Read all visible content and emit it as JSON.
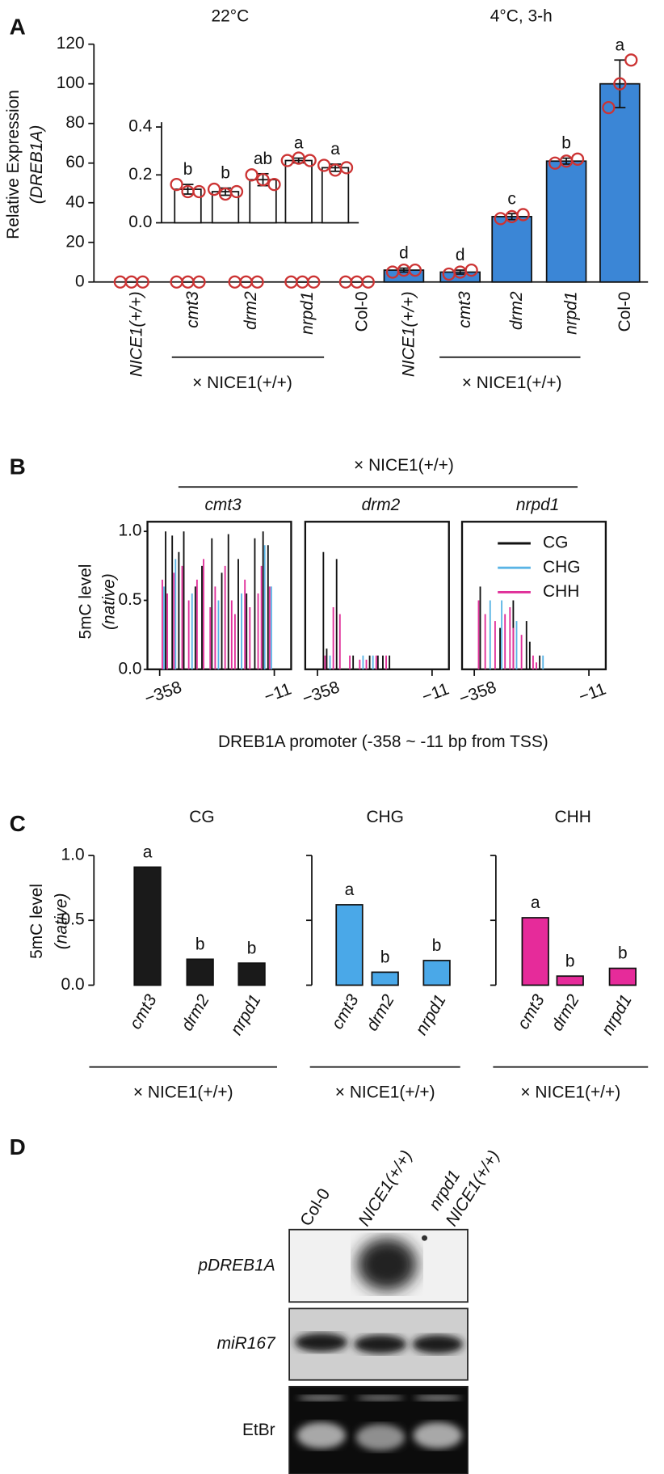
{
  "chart_data": [
    {
      "type": "bar",
      "panel": "A",
      "titles": [
        "22°C",
        "4°C, 3-h"
      ],
      "ylabel": [
        "Relative Expression",
        "(DREB1A)"
      ],
      "categories": [
        "NICE1(+/+)",
        "cmt3",
        "drm2",
        "nrpd1",
        "Col-0",
        "NICE1(+/+)",
        "cmt3",
        "drm2",
        "nrpd1",
        "Col-0"
      ],
      "values": [
        0,
        0,
        0,
        0,
        0,
        6,
        5,
        33,
        61,
        100
      ],
      "errors": [
        0,
        0,
        0,
        0,
        0,
        1,
        1,
        1.5,
        1.5,
        12
      ],
      "replicates": [
        [
          0,
          0,
          0
        ],
        [
          0,
          0,
          0
        ],
        [
          0,
          0,
          0
        ],
        [
          0,
          0,
          0
        ],
        [
          0,
          0,
          0
        ],
        [
          5,
          6,
          6
        ],
        [
          4,
          5,
          6
        ],
        [
          32,
          33,
          34
        ],
        [
          60,
          61,
          62
        ],
        [
          88,
          100,
          112
        ]
      ],
      "letters": [
        null,
        null,
        null,
        null,
        null,
        "d",
        "d",
        "c",
        "b",
        "a"
      ],
      "colors": [
        "#ffffff",
        "#ffffff",
        "#ffffff",
        "#ffffff",
        "#ffffff",
        "#3b86d6",
        "#3b86d6",
        "#3b86d6",
        "#3b86d6",
        "#3b86d6"
      ],
      "replicate_color": "#cc3333",
      "ylim": [
        0,
        120
      ],
      "yticks": [
        0,
        20,
        40,
        60,
        80,
        100,
        120
      ],
      "group_labels": [
        "× NICE1(+/+)",
        "× NICE1(+/+)"
      ]
    },
    {
      "type": "bar",
      "values": [
        0.14,
        0.13,
        0.18,
        0.26,
        0.23
      ],
      "errors": [
        0.02,
        0.015,
        0.025,
        0.01,
        0.015
      ],
      "replicates": [
        [
          0.16,
          0.13,
          0.13
        ],
        [
          0.14,
          0.12,
          0.13
        ],
        [
          0.2,
          0.18,
          0.16
        ],
        [
          0.26,
          0.27,
          0.26
        ],
        [
          0.24,
          0.22,
          0.23
        ]
      ],
      "letters": [
        "b",
        "b",
        "ab",
        "a",
        "a"
      ],
      "color": "#ffffff",
      "replicate_color": "#cc3333",
      "ylim": [
        0,
        0.42
      ],
      "yticks": [
        {
          "value": 0,
          "label": "0.0"
        },
        {
          "value": 0.2,
          "label": "0.2"
        },
        {
          "value": 0.4,
          "label": "0.4"
        }
      ]
    },
    {
      "type": "stick",
      "panel": "B",
      "suptitle": "× NICE1(+/+)",
      "title": "cmt3",
      "ylabel": [
        "5mC level",
        "(native)"
      ],
      "series": [
        {
          "name": "CG",
          "color": "#111111",
          "x": [
            -340,
            -320,
            -300,
            -285,
            -250,
            -230,
            -200,
            -170,
            -150,
            -120,
            -95,
            -70,
            -45,
            -30
          ],
          "values": [
            1.0,
            0.97,
            0.85,
            1.0,
            0.6,
            0.75,
            0.95,
            0.7,
            0.98,
            0.8,
            0.55,
            0.95,
            1.0,
            0.9
          ]
        },
        {
          "name": "CHG",
          "color": "#5ab4e5",
          "x": [
            -345,
            -310,
            -260,
            -180,
            -110,
            -40,
            -20
          ],
          "values": [
            0.6,
            0.8,
            0.55,
            0.5,
            0.55,
            0.9,
            0.6
          ]
        },
        {
          "name": "CHH",
          "color": "#e0309a",
          "x": [
            -350,
            -335,
            -315,
            -290,
            -270,
            -245,
            -225,
            -205,
            -190,
            -160,
            -140,
            -130,
            -100,
            -85,
            -60,
            -50,
            -25
          ],
          "values": [
            0.65,
            0.55,
            0.7,
            0.75,
            0.5,
            0.65,
            0.8,
            0.45,
            0.6,
            0.75,
            0.5,
            0.4,
            0.65,
            0.45,
            0.55,
            0.75,
            0.6
          ]
        }
      ],
      "xlim": [
        -395,
        40
      ],
      "xticks": [
        {
          "value": -358,
          "label": "−358"
        },
        {
          "value": -11,
          "label": "−11"
        }
      ],
      "ylim": [
        0,
        1.07
      ],
      "yticks": [
        {
          "value": 0,
          "label": "0.0"
        },
        {
          "value": 0.5,
          "label": "0.5"
        },
        {
          "value": 1,
          "label": "1.0"
        }
      ]
    },
    {
      "type": "stick",
      "title": "drm2",
      "xlabel": "DREB1A promoter (-358 ~ -11 bp from TSS)",
      "series": [
        {
          "name": "CG",
          "color": "#111111",
          "x": [
            -340,
            -330,
            -300,
            -250,
            -200,
            -175,
            -160,
            -140
          ],
          "values": [
            0.85,
            0.15,
            0.8,
            0.1,
            0.1,
            0.1,
            0.1,
            0.1
          ]
        },
        {
          "name": "CHG",
          "color": "#5ab4e5",
          "x": [
            -320,
            -220,
            -190
          ],
          "values": [
            0.1,
            0.1,
            0.1
          ]
        },
        {
          "name": "CHH",
          "color": "#e0309a",
          "x": [
            -335,
            -310,
            -290,
            -260,
            -230,
            -210,
            -180,
            -150
          ],
          "values": [
            0.1,
            0.45,
            0.4,
            0.1,
            0.07,
            0.07,
            0.1,
            0.1
          ]
        }
      ],
      "xlim": [
        -395,
        40
      ],
      "xticks": [
        {
          "value": -358,
          "label": "−358"
        },
        {
          "value": -11,
          "label": "−11"
        }
      ],
      "ylim": [
        0,
        1.07
      ]
    },
    {
      "type": "stick",
      "title": "nrpd1",
      "legend": "upper right",
      "series": [
        {
          "name": "CG",
          "color": "#111111",
          "x": [
            -340,
            -280,
            -240,
            -200,
            -190,
            -160
          ],
          "values": [
            0.6,
            0.3,
            0.5,
            0.35,
            0.2,
            0.1
          ]
        },
        {
          "name": "CHG",
          "color": "#5ab4e5",
          "x": [
            -310,
            -275,
            -230,
            -150
          ],
          "values": [
            0.5,
            0.5,
            0.35,
            0.1
          ]
        },
        {
          "name": "CHH",
          "color": "#e0309a",
          "x": [
            -345,
            -325,
            -295,
            -265,
            -250,
            -240,
            -215,
            -180,
            -170
          ],
          "values": [
            0.5,
            0.4,
            0.35,
            0.4,
            0.45,
            0.3,
            0.25,
            0.1,
            0.05
          ]
        }
      ],
      "xlim": [
        -395,
        40
      ],
      "xticks": [
        {
          "value": -358,
          "label": "−358"
        },
        {
          "value": -11,
          "label": "−11"
        }
      ],
      "ylim": [
        0,
        1.07
      ]
    },
    {
      "type": "bar",
      "panel": "C",
      "title": "CG",
      "ylabel": [
        "5mC level",
        "(native)"
      ],
      "categories": [
        "cmt3",
        "drm2",
        "nrpd1"
      ],
      "values": [
        0.91,
        0.2,
        0.17
      ],
      "letters": [
        "a",
        "b",
        "b"
      ],
      "color": "#1a1a1a",
      "ylim": [
        0,
        1
      ],
      "yticks": [
        {
          "value": 0,
          "label": "0.0"
        },
        {
          "value": 0.5,
          "label": "0.5"
        },
        {
          "value": 1,
          "label": "1.0"
        }
      ],
      "group_label": "× NICE1(+/+)"
    },
    {
      "type": "bar",
      "title": "CHG",
      "categories": [
        "cmt3",
        "drm2",
        "nrpd1"
      ],
      "values": [
        0.62,
        0.1,
        0.19
      ],
      "letters": [
        "a",
        "b",
        "b"
      ],
      "color": "#4aa8e8",
      "ylim": [
        0,
        1
      ],
      "yticks": [
        0,
        0.5,
        1
      ],
      "group_label": "× NICE1(+/+)"
    },
    {
      "type": "bar",
      "title": "CHH",
      "categories": [
        "cmt3",
        "drm2",
        "nrpd1"
      ],
      "values": [
        0.52,
        0.07,
        0.13
      ],
      "letters": [
        "a",
        "b",
        "b"
      ],
      "color": "#e62b9a",
      "ylim": [
        0,
        1
      ],
      "yticks": [
        0,
        0.5,
        1
      ],
      "group_label": "× NICE1(+/+)"
    }
  ],
  "panel_d": {
    "panel": "D",
    "columns": [
      [
        "Col-0"
      ],
      [
        "NICE1(+/+)"
      ],
      [
        "nrpd1",
        "NICE1(+/+)"
      ]
    ],
    "rows": [
      "pDREB1A",
      "miR167",
      "EtBr"
    ]
  }
}
